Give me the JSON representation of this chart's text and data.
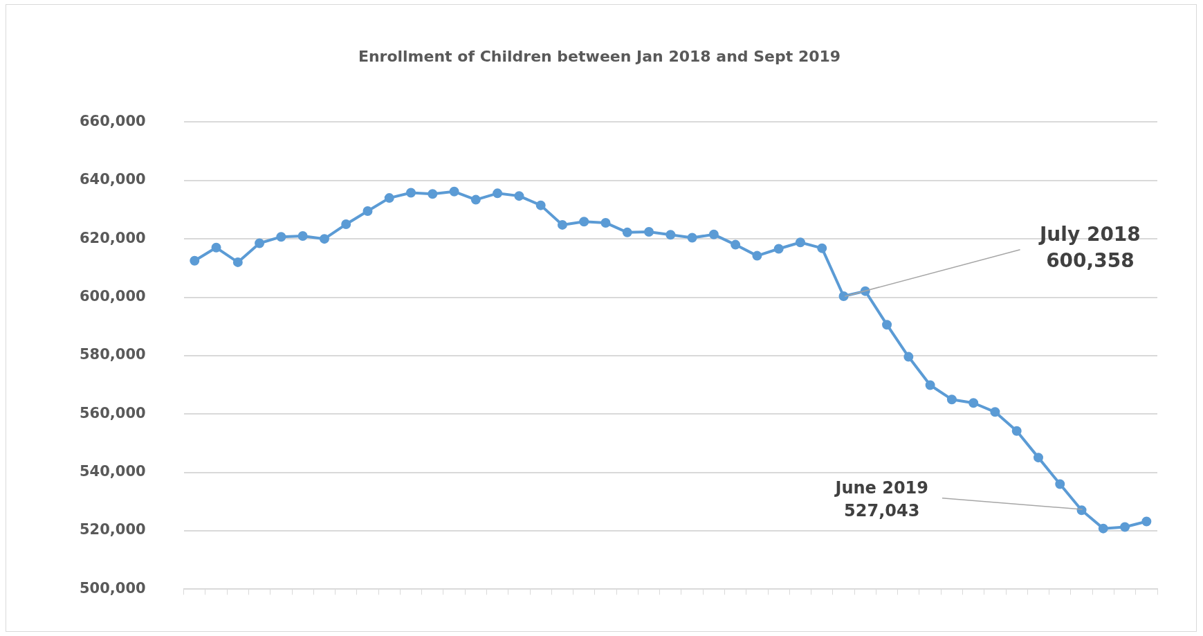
{
  "chart_data": {
    "type": "line",
    "title": "Enrollment of Children between Jan 2018 and Sept 2019",
    "categories": [
      null,
      null,
      null,
      null,
      null,
      null,
      null,
      null,
      null,
      null,
      null,
      null,
      null,
      null,
      null,
      null,
      null,
      null,
      null,
      null,
      null,
      null,
      null,
      null,
      null,
      null,
      null,
      null,
      null,
      null,
      null,
      null,
      null,
      null,
      null,
      null,
      null,
      null,
      null,
      null,
      null,
      null,
      null,
      null,
      null
    ],
    "series": [
      {
        "color": "#5b9bd5",
        "values": [
          612500,
          617000,
          612000,
          618500,
          620700,
          621000,
          620000,
          625000,
          629500,
          634000,
          635800,
          635400,
          636200,
          633400,
          635600,
          634700,
          631500,
          624800,
          625900,
          625500,
          622200,
          622400,
          621400,
          620400,
          621500,
          618000,
          614200,
          616600,
          618800,
          616800,
          600358,
          602100,
          590600,
          579600,
          569900,
          565000,
          563800,
          560700,
          554200,
          545100,
          536000,
          527043,
          520800,
          521300,
          523200
        ]
      }
    ],
    "ylim": [
      500000,
      660000
    ],
    "yticks": [
      {
        "value": 500000,
        "label": "500,000"
      },
      {
        "value": 520000,
        "label": "520,000"
      },
      {
        "value": 540000,
        "label": "540,000"
      },
      {
        "value": 560000,
        "label": "560,000"
      },
      {
        "value": 580000,
        "label": "580,000"
      },
      {
        "value": 600000,
        "label": "600,000"
      },
      {
        "value": 620000,
        "label": "620,000"
      },
      {
        "value": 640000,
        "label": "640,000"
      },
      {
        "value": 660000,
        "label": "660,000"
      }
    ],
    "grid": "y",
    "legend": false,
    "marker": "circle",
    "line_style": "solid",
    "annotations": [
      "July 2018\n600,358",
      "June 2019\n527,043"
    ]
  }
}
